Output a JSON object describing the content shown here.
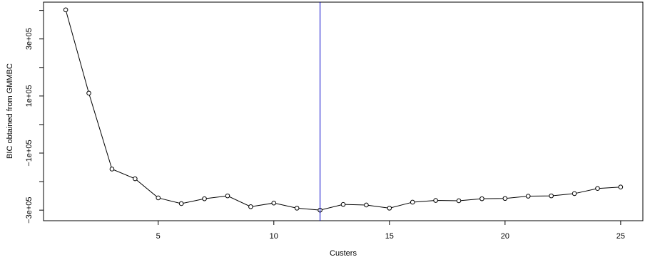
{
  "chart_data": {
    "type": "line",
    "title": "",
    "xlabel": "Custers",
    "ylabel": "BIC obtained from GMMBC",
    "x": [
      1,
      2,
      3,
      4,
      5,
      6,
      7,
      8,
      9,
      10,
      11,
      12,
      13,
      14,
      15,
      16,
      17,
      18,
      19,
      20,
      21,
      22,
      23,
      24,
      25
    ],
    "series": [
      {
        "values": [
          402000,
          110000,
          -156000,
          -190000,
          -257000,
          -277000,
          -260000,
          -250000,
          -288000,
          -275000,
          -293000,
          -300000,
          -280000,
          -282000,
          -293000,
          -272000,
          -266000,
          -267000,
          -260000,
          -259000,
          -251000,
          -250000,
          -242000,
          -224000,
          -219000
        ]
      }
    ],
    "vline_x": 12,
    "xlim": [
      0.04,
      25.96
    ],
    "ylim": [
      -337000,
      429000
    ],
    "x_ticks": [
      5,
      10,
      15,
      20,
      25
    ],
    "x_tick_labels": [
      "5",
      "10",
      "15",
      "20",
      "25"
    ],
    "y_ticks": [
      -300000,
      -200000,
      -100000,
      0,
      100000,
      200000,
      300000,
      400000
    ],
    "y_tick_labels": [
      "−3e+05",
      "",
      "−1e+05",
      "",
      "1e+05",
      "",
      "3e+05",
      ""
    ],
    "grid": false,
    "legend": "none",
    "colors": {
      "line": "#000000",
      "vline": "#0000cc",
      "axis": "#000000"
    }
  }
}
